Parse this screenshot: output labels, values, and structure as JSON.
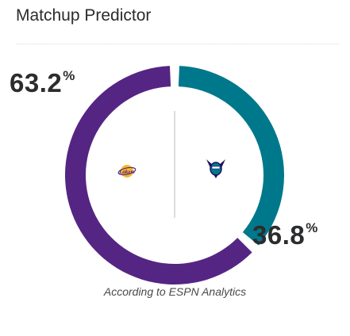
{
  "header": {
    "title": "Matchup Predictor"
  },
  "prediction": {
    "home_pct": "63.2",
    "away_pct": "36.8",
    "pct_symbol": "%",
    "home_share": 0.632,
    "away_share": 0.368
  },
  "teams": {
    "home": {
      "logo_text": "Lakers",
      "icon": "lakers-logo",
      "color": "#552583"
    },
    "away": {
      "icon": "hornets-logo",
      "color": "#00788c"
    }
  },
  "footer": {
    "source": "According to ESPN Analytics"
  }
}
